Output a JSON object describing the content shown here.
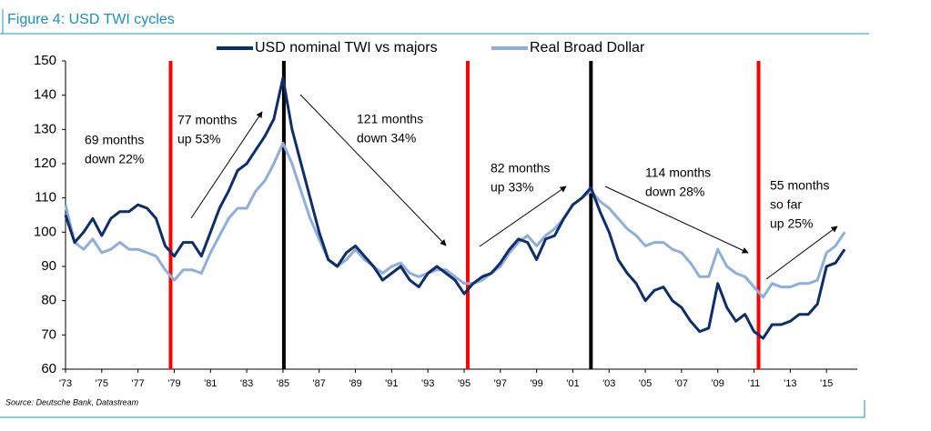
{
  "chart_data": {
    "type": "line",
    "title": "Figure 4: USD TWI cycles",
    "source": "Source: Deutsche Bank, Datastream",
    "x": [
      1973,
      1973.5,
      1974,
      1974.5,
      1975,
      1975.5,
      1976,
      1976.5,
      1977,
      1977.5,
      1978,
      1978.5,
      1979,
      1979.5,
      1980,
      1980.5,
      1981,
      1981.5,
      1982,
      1982.5,
      1983,
      1983.5,
      1984,
      1984.5,
      1985,
      1985.5,
      1986,
      1986.5,
      1987,
      1987.5,
      1988,
      1988.5,
      1989,
      1989.5,
      1990,
      1990.5,
      1991,
      1991.5,
      1992,
      1992.5,
      1993,
      1993.5,
      1994,
      1994.5,
      1995,
      1995.5,
      1996,
      1996.5,
      1997,
      1997.5,
      1998,
      1998.5,
      1999,
      1999.5,
      2000,
      2000.5,
      2001,
      2001.5,
      2002,
      2002.5,
      2003,
      2003.5,
      2004,
      2004.5,
      2005,
      2005.5,
      2006,
      2006.5,
      2007,
      2007.5,
      2008,
      2008.5,
      2009,
      2009.5,
      2010,
      2010.5,
      2011,
      2011.5,
      2012,
      2012.5,
      2013,
      2013.5,
      2014,
      2014.5,
      2015,
      2015.5,
      2016
    ],
    "series": [
      {
        "name": "USD nominal TWI vs majors",
        "color": "#0d2d6b",
        "values": [
          105,
          97,
          100,
          104,
          99,
          104,
          106,
          106,
          108,
          107,
          104,
          96,
          93,
          97,
          97,
          93,
          100,
          107,
          112,
          118,
          120,
          124,
          128,
          133,
          145,
          130,
          120,
          110,
          100,
          92,
          90,
          94,
          96,
          93,
          90,
          86,
          88,
          90,
          86,
          84,
          88,
          90,
          88,
          86,
          82,
          85,
          87,
          88,
          91,
          95,
          98,
          97,
          92,
          98,
          99,
          104,
          108,
          110,
          113,
          106,
          100,
          92,
          88,
          85,
          80,
          83,
          84,
          80,
          78,
          74,
          71,
          72,
          85,
          78,
          74,
          76,
          71,
          69,
          73,
          73,
          74,
          76,
          76,
          79,
          90,
          91,
          95
        ]
      },
      {
        "name": "Real Broad Dollar",
        "color": "#8eaedb",
        "values": [
          108,
          97,
          95,
          98,
          94,
          95,
          97,
          95,
          95,
          94,
          93,
          89,
          86,
          89,
          89,
          88,
          94,
          99,
          104,
          107,
          107,
          112,
          115,
          120,
          126,
          120,
          112,
          104,
          98,
          92,
          90,
          92,
          95,
          92,
          90,
          88,
          90,
          91,
          88,
          87,
          88,
          89,
          89,
          87,
          85,
          85,
          86,
          88,
          90,
          94,
          97,
          99,
          96,
          99,
          101,
          104,
          108,
          110,
          112,
          109,
          107,
          104,
          101,
          99,
          96,
          97,
          97,
          95,
          94,
          91,
          87,
          87,
          95,
          90,
          88,
          87,
          84,
          81,
          85,
          84,
          84,
          85,
          85,
          86,
          94,
          96,
          100
        ]
      }
    ],
    "cycle_markers": [
      {
        "x": 1978.8,
        "color": "#ff0000"
      },
      {
        "x": 1985.05,
        "color": "#000000"
      },
      {
        "x": 1995.2,
        "color": "#ff0000"
      },
      {
        "x": 2002,
        "color": "#000000"
      },
      {
        "x": 2011.25,
        "color": "#ff0000"
      }
    ],
    "annotations": [
      [
        "69 months",
        "down 22%"
      ],
      [
        "77 months",
        "up 53%"
      ],
      [
        "121 months",
        "down 34%"
      ],
      [
        "82 months",
        "up 33%"
      ],
      [
        "114 months",
        "down 28%"
      ],
      [
        "55 months",
        "so far",
        "up 25%"
      ]
    ],
    "xlim": [
      1973,
      2016.7
    ],
    "xticks": [
      {
        "value": 1973,
        "label": "'73"
      },
      {
        "value": 1975,
        "label": "'75"
      },
      {
        "value": 1977,
        "label": "'77"
      },
      {
        "value": 1979,
        "label": "'79"
      },
      {
        "value": 1981,
        "label": "'81"
      },
      {
        "value": 1983,
        "label": "'83"
      },
      {
        "value": 1985,
        "label": "'85"
      },
      {
        "value": 1987,
        "label": "'87"
      },
      {
        "value": 1989,
        "label": "'89"
      },
      {
        "value": 1991,
        "label": "'91"
      },
      {
        "value": 1993,
        "label": "'93"
      },
      {
        "value": 1995,
        "label": "'95"
      },
      {
        "value": 1997,
        "label": "'97"
      },
      {
        "value": 1999,
        "label": "'99"
      },
      {
        "value": 2001,
        "label": "'01"
      },
      {
        "value": 2003,
        "label": "'03"
      },
      {
        "value": 2005,
        "label": "'05"
      },
      {
        "value": 2007,
        "label": "'07"
      },
      {
        "value": 2009,
        "label": "'09"
      },
      {
        "value": 2011,
        "label": "'11"
      },
      {
        "value": 2013,
        "label": "'13"
      },
      {
        "value": 2015,
        "label": "'15"
      }
    ],
    "ylim": [
      60,
      150
    ],
    "yticks": [
      60,
      70,
      80,
      90,
      100,
      110,
      120,
      130,
      140,
      150
    ],
    "grid": false
  }
}
